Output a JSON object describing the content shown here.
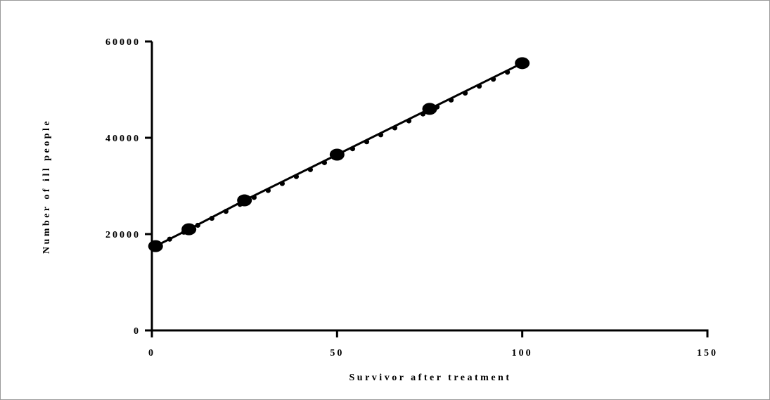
{
  "chart_data": {
    "type": "line",
    "title": "",
    "xlabel": "Survivor after treatment",
    "ylabel": "Number of ill people",
    "xlim": [
      0,
      150
    ],
    "ylim": [
      0,
      60000
    ],
    "x_ticks": [
      0,
      50,
      100,
      150
    ],
    "x_tick_labels": [
      "0",
      "50",
      "100",
      "150"
    ],
    "y_ticks": [
      0,
      20000,
      40000,
      60000
    ],
    "y_tick_labels": [
      "0",
      "20000",
      "40000",
      "60000"
    ],
    "grid": false,
    "legend": "none",
    "line_color": "#000000",
    "series": [
      {
        "markers": "large",
        "x": [
          1,
          10,
          25,
          50,
          75,
          100
        ],
        "y": [
          17500,
          21000,
          27000,
          36500,
          46000,
          55500
        ]
      },
      {
        "markers": "small",
        "x": [
          1,
          4.8,
          8.6,
          12.4,
          16.2,
          20,
          23.8,
          27.6,
          31.4,
          35.2,
          39,
          42.8,
          46.6,
          50.4,
          54.2,
          58,
          61.8,
          65.6,
          69.4,
          73.2,
          77,
          80.8,
          84.6,
          88.4,
          92.2,
          96,
          100
        ],
        "y": [
          17500,
          18945,
          20389,
          21834,
          23278,
          24723,
          26167,
          27612,
          29057,
          30501,
          31946,
          33390,
          34835,
          36279,
          37724,
          39168,
          40613,
          42058,
          43502,
          44947,
          46391,
          47836,
          49280,
          50725,
          52169,
          53614,
          55059
        ]
      }
    ]
  }
}
